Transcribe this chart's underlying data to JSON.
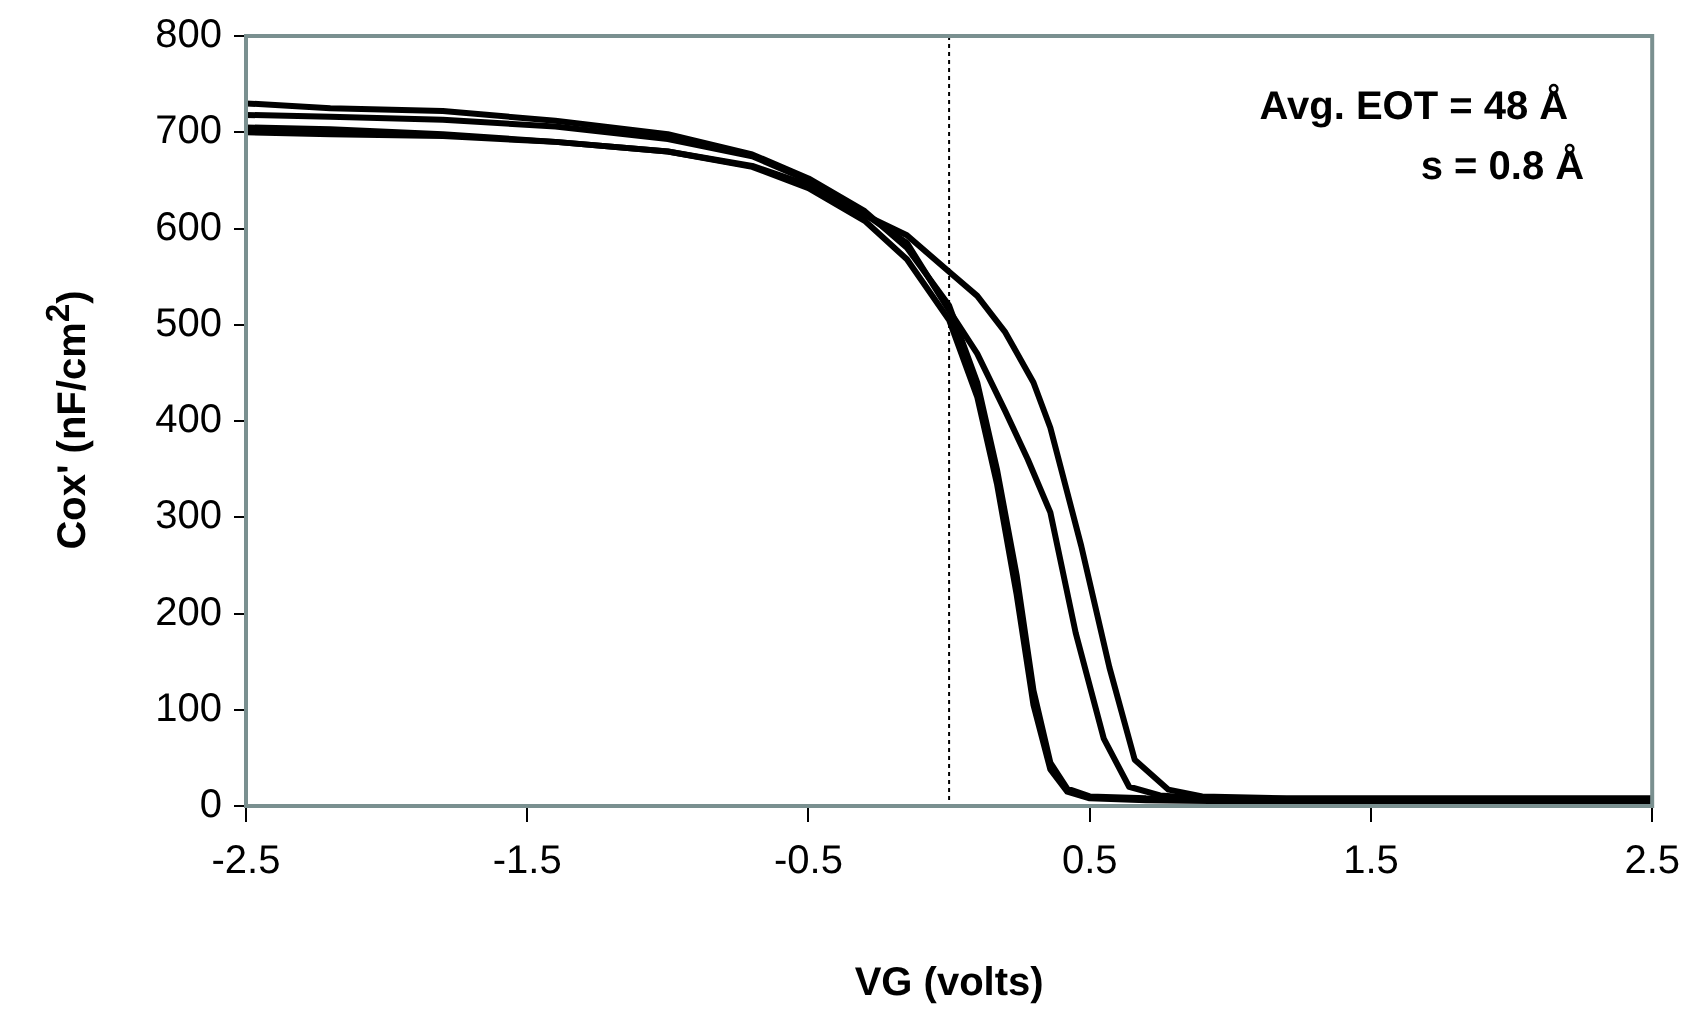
{
  "chart_data": {
    "type": "line",
    "xlabel": "VG (volts)",
    "ylabel": "Cox' (nF/cm$^{2}$)",
    "annotations": [
      "Avg. EOT = 48 Å",
      "s = 0.8 Å"
    ],
    "xlim": [
      -2.5,
      2.5
    ],
    "xticks": [
      -2.5,
      -1.5,
      -0.5,
      0.5,
      1.5,
      2.5
    ],
    "ylim": [
      0,
      800
    ],
    "yticks": [
      0,
      100,
      200,
      300,
      400,
      500,
      600,
      700,
      800
    ],
    "grid": false,
    "legend": false,
    "marker": "none",
    "line_style": "solid",
    "ref_lines": [
      {
        "axis": "x",
        "value": 0,
        "color": "#000000",
        "line_style": "dotted"
      }
    ],
    "series": [
      {
        "color": "#000000",
        "x": [
          -2.5,
          -2.2,
          -1.8,
          -1.4,
          -1.0,
          -0.7,
          -0.5,
          -0.3,
          -0.15,
          0,
          0.1,
          0.17,
          0.24,
          0.3,
          0.36,
          0.42,
          0.5,
          0.7,
          1.0,
          1.5,
          2.0,
          2.5
        ],
        "values": [
          730,
          725,
          722,
          712,
          698,
          677,
          652,
          618,
          580,
          520,
          440,
          350,
          240,
          120,
          45,
          18,
          10,
          8,
          7,
          7,
          7,
          7
        ]
      },
      {
        "color": "#000000",
        "x": [
          -2.5,
          -2.2,
          -1.8,
          -1.4,
          -1.0,
          -0.7,
          -0.5,
          -0.3,
          -0.15,
          0,
          0.1,
          0.17,
          0.24,
          0.3,
          0.36,
          0.42,
          0.5,
          0.7,
          1.0,
          1.5,
          2.0,
          2.5
        ],
        "values": [
          705,
          703,
          698,
          690,
          680,
          664,
          642,
          608,
          568,
          505,
          425,
          335,
          220,
          105,
          38,
          15,
          8,
          6,
          5,
          4,
          4,
          4
        ]
      },
      {
        "color": "#000000",
        "x": [
          -2.5,
          -2.2,
          -1.8,
          -1.4,
          -1.0,
          -0.7,
          -0.5,
          -0.3,
          -0.15,
          0,
          0.1,
          0.2,
          0.28,
          0.36,
          0.45,
          0.55,
          0.64,
          0.75,
          0.9,
          1.2,
          1.8,
          2.5
        ],
        "values": [
          718,
          716,
          713,
          706,
          693,
          675,
          650,
          615,
          585,
          515,
          470,
          410,
          360,
          305,
          180,
          70,
          20,
          11,
          8,
          7,
          7,
          7
        ]
      },
      {
        "color": "#000000",
        "x": [
          -2.5,
          -2.2,
          -1.8,
          -1.4,
          -1.0,
          -0.7,
          -0.5,
          -0.3,
          -0.15,
          0,
          0.1,
          0.2,
          0.3,
          0.36,
          0.47,
          0.57,
          0.66,
          0.78,
          0.9,
          1.2,
          1.8,
          2.5
        ],
        "values": [
          700,
          698,
          696,
          690,
          680,
          665,
          645,
          614,
          593,
          555,
          530,
          492,
          440,
          393,
          270,
          144,
          48,
          17,
          10,
          8,
          8,
          8
        ]
      }
    ]
  }
}
